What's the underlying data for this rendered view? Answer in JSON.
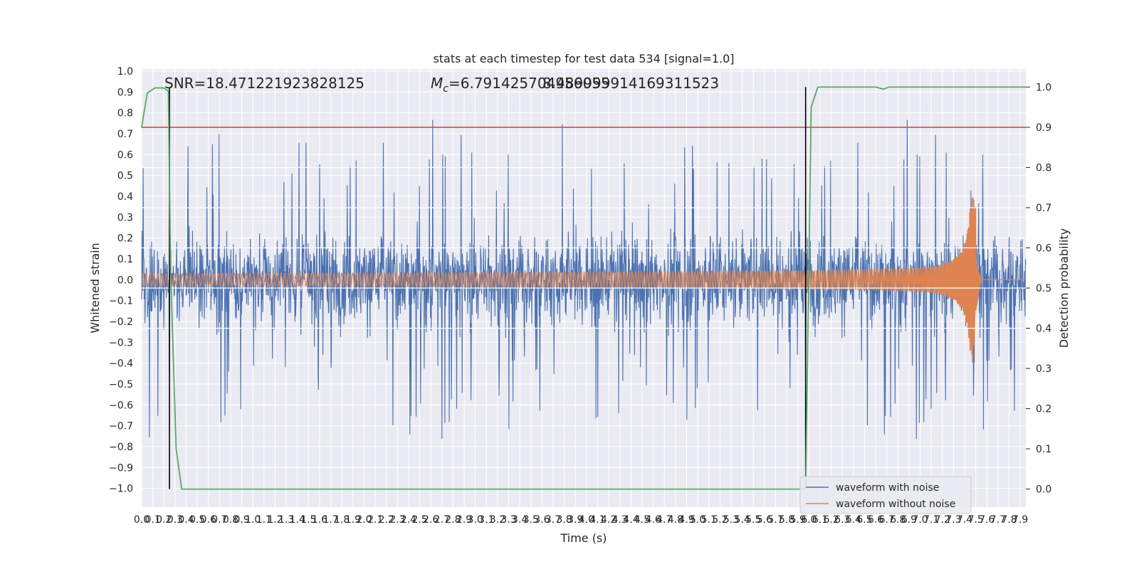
{
  "chart_data": {
    "type": "line",
    "title": "stats at each timestep for test data 534 [signal=1.0]",
    "xlabel": "Time (s)",
    "ylabel": "Whitened strain",
    "ylabel_right": "Detection probability",
    "xlim": [
      0.0,
      7.95
    ],
    "ylim": [
      -1.09,
      1.01
    ],
    "ylim_right": [
      -0.045,
      1.045
    ],
    "grid": true,
    "legend_position": "lower-right",
    "annotations": {
      "snr": "SNR=18.471221923828125",
      "mc": "=6.791425704956055",
      "mc_symbol": "M",
      "mc_subscript": "c",
      "overlap": "8.489999914169311523"
    },
    "x_ticks": [
      "0.0",
      "0.1",
      "0.2",
      "0.3",
      "0.4",
      "0.5",
      "0.6",
      "0.7",
      "0.8",
      "0.9",
      "1.0",
      "1.1",
      "1.2",
      "1.3",
      "1.4",
      "1.5",
      "1.6",
      "1.7",
      "1.8",
      "1.9",
      "2.0",
      "2.1",
      "2.2",
      "2.3",
      "2.4",
      "2.5",
      "2.6",
      "2.7",
      "2.8",
      "2.9",
      "3.0",
      "3.1",
      "3.2",
      "3.3",
      "3.4",
      "3.5",
      "3.6",
      "3.7",
      "3.8",
      "3.9",
      "4.0",
      "4.1",
      "4.2",
      "4.3",
      "4.4",
      "4.5",
      "4.6",
      "4.7",
      "4.8",
      "4.9",
      "5.0",
      "5.1",
      "5.2",
      "5.3",
      "5.4",
      "5.5",
      "5.6",
      "5.7",
      "5.8",
      "5.9",
      "6.0",
      "6.1",
      "6.2",
      "6.3",
      "6.4",
      "6.5",
      "6.6",
      "6.7",
      "6.8",
      "6.9",
      "7.0",
      "7.1",
      "7.2",
      "7.3",
      "7.4",
      "7.5",
      "7.6",
      "7.7",
      "7.8",
      "7.9"
    ],
    "y_ticks": [
      "1.0",
      "0.9",
      "0.8",
      "0.7",
      "0.6",
      "0.5",
      "0.4",
      "0.3",
      "0.2",
      "0.1",
      "0.0",
      "−0.1",
      "−0.2",
      "−0.3",
      "−0.4",
      "−0.5",
      "−0.6",
      "−0.7",
      "−0.8",
      "−0.9",
      "−1.0"
    ],
    "y_ticks_right": [
      "1.0",
      "0.9",
      "0.8",
      "0.7",
      "0.6",
      "0.5",
      "0.4",
      "0.3",
      "0.2",
      "0.1",
      "0.0"
    ],
    "threshold_right": 0.9,
    "vertical_markers_x": [
      0.25,
      5.97
    ],
    "series": [
      {
        "name": "waveform with noise",
        "color": "#4c72b0",
        "noise_envelope": 0.5,
        "spike_max": 0.91,
        "spike_min": -1.0
      },
      {
        "name": "waveform without noise",
        "color": "#dd8452",
        "amplitude_start": 0.03,
        "amplitude_peak": 0.4,
        "merger_time": 7.5,
        "end_time": 7.55
      },
      {
        "name": "Detection probability",
        "color": "#55a868",
        "axis": "right",
        "points": [
          [
            0.0,
            0.9
          ],
          [
            0.05,
            0.985
          ],
          [
            0.12,
            0.998
          ],
          [
            0.2,
            0.998
          ],
          [
            0.24,
            0.99
          ],
          [
            0.26,
            0.55
          ],
          [
            0.31,
            0.1
          ],
          [
            0.36,
            0.0
          ],
          [
            5.6,
            0.0
          ],
          [
            5.94,
            0.0
          ],
          [
            5.97,
            0.0
          ],
          [
            6.02,
            0.95
          ],
          [
            6.08,
            1.0
          ],
          [
            6.6,
            1.0
          ],
          [
            6.67,
            0.995
          ],
          [
            6.72,
            1.0
          ],
          [
            7.95,
            1.0
          ]
        ]
      }
    ],
    "threshold_color": "#c44e52",
    "marker_color": "#000000"
  }
}
